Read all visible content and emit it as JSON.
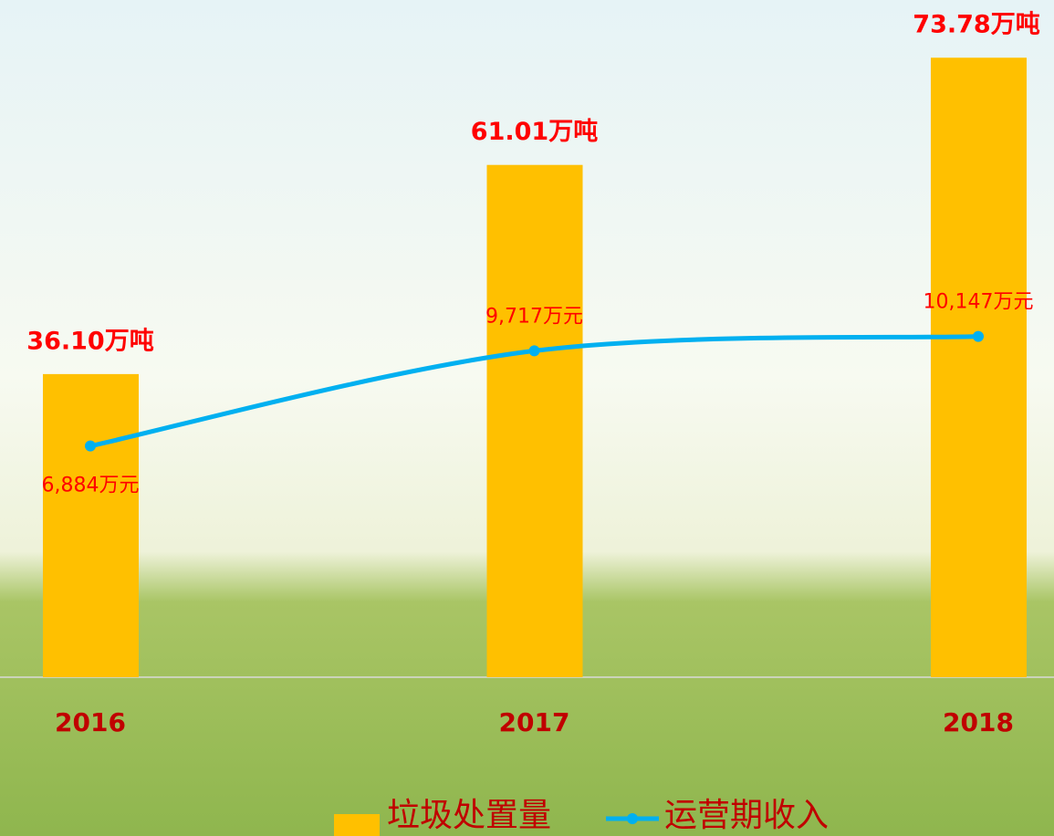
{
  "chart_data": {
    "type": "bar",
    "categories": [
      "2016",
      "2017",
      "2018"
    ],
    "series": [
      {
        "name": "垃圾处置量",
        "color": "#ffc000",
        "type": "bar",
        "values": [
          36.1,
          61.01,
          73.78
        ],
        "value_labels": [
          "36.10万吨",
          "61.01万吨",
          "73.78万吨"
        ]
      },
      {
        "name": "运营期收入",
        "color": "#00b0f0",
        "type": "line",
        "axis": "y2",
        "values": [
          6884,
          9717,
          10147
        ],
        "value_labels": [
          "6,884万元",
          "9,717万元",
          "10,147万元"
        ]
      }
    ],
    "ylim": [
      0,
      80
    ],
    "y2lim": [
      0,
      20000
    ]
  }
}
